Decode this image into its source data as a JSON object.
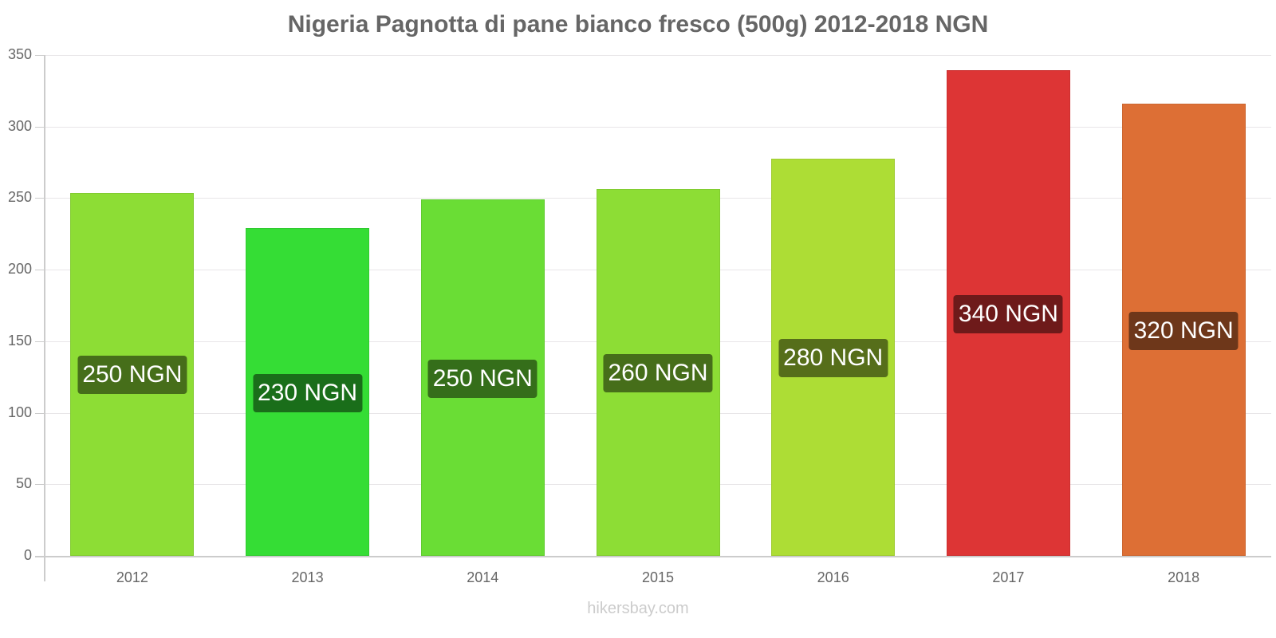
{
  "chart_data": {
    "type": "bar",
    "title": "Nigeria Pagnotta di pane bianco fresco (500g) 2012-2018 NGN",
    "xlabel": "",
    "ylabel": "",
    "categories": [
      "2012",
      "2013",
      "2014",
      "2015",
      "2016",
      "2017",
      "2018"
    ],
    "values": [
      253.6,
      229.0,
      249.0,
      256.3,
      277.5,
      339.2,
      315.9
    ],
    "data_labels": [
      "250 NGN",
      "230 NGN",
      "250 NGN",
      "260 NGN",
      "280 NGN",
      "340 NGN",
      "320 NGN"
    ],
    "ylim": [
      0,
      350
    ],
    "yticks": [
      0,
      50,
      100,
      150,
      200,
      250,
      300,
      350
    ],
    "grid": true,
    "legend": null,
    "bar_colors": [
      "#8ddd35",
      "#35dd35",
      "#6add35",
      "#8ddd35",
      "#addd35",
      "#dd3535",
      "#dd6f35"
    ],
    "label_colors": [
      "#466e1a",
      "#1a6e1a",
      "#356e1a",
      "#466e1a",
      "#566e1a",
      "#6e1a1a",
      "#6e371a"
    ]
  },
  "watermark": "hikersbay.com"
}
